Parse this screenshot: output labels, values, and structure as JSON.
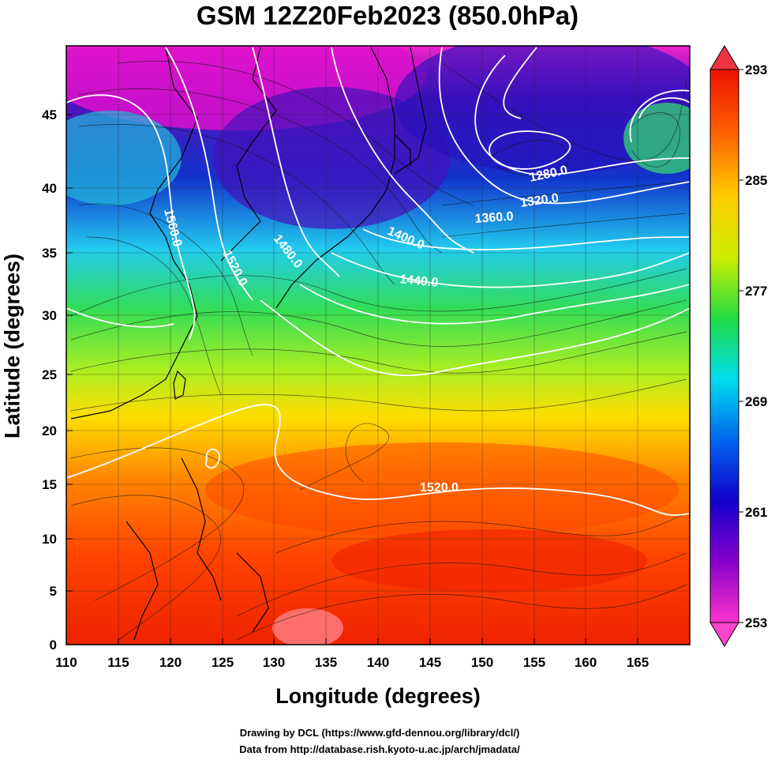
{
  "title": "GSM 12Z20Feb2023 (850.0hPa)",
  "xlabel": "Longitude (degrees)",
  "ylabel": "Latitude  (degrees)",
  "credit_line1": "Drawing by DCL (https://www.gfd-dennou.org/library/dcl/)",
  "credit_line2": "Data from http://database.rish.kyoto-u.ac.jp/arch/jmadata/",
  "x_ticks": [
    "110",
    "115",
    "120",
    "125",
    "130",
    "135",
    "140",
    "145",
    "150",
    "155",
    "160",
    "165"
  ],
  "y_ticks": [
    "0",
    "5",
    "10",
    "15",
    "20",
    "25",
    "30",
    "35",
    "40",
    "45"
  ],
  "colorbar": {
    "labels": [
      "293",
      "285",
      "277",
      "269",
      "261",
      "253"
    ],
    "min": 253,
    "max": 293,
    "stops": [
      "#ff33cc",
      "#8800cc",
      "#1100cc",
      "#0099ee",
      "#00dddd",
      "#22cc22",
      "#ccee00",
      "#ffcc00",
      "#ff6600",
      "#ee1100"
    ]
  },
  "contour_labels": [
    "1280.0",
    "1320.0",
    "1360.0",
    "1400.0",
    "1440.0",
    "1480.0",
    "1520.0",
    "1560.0",
    "1520.0"
  ]
}
